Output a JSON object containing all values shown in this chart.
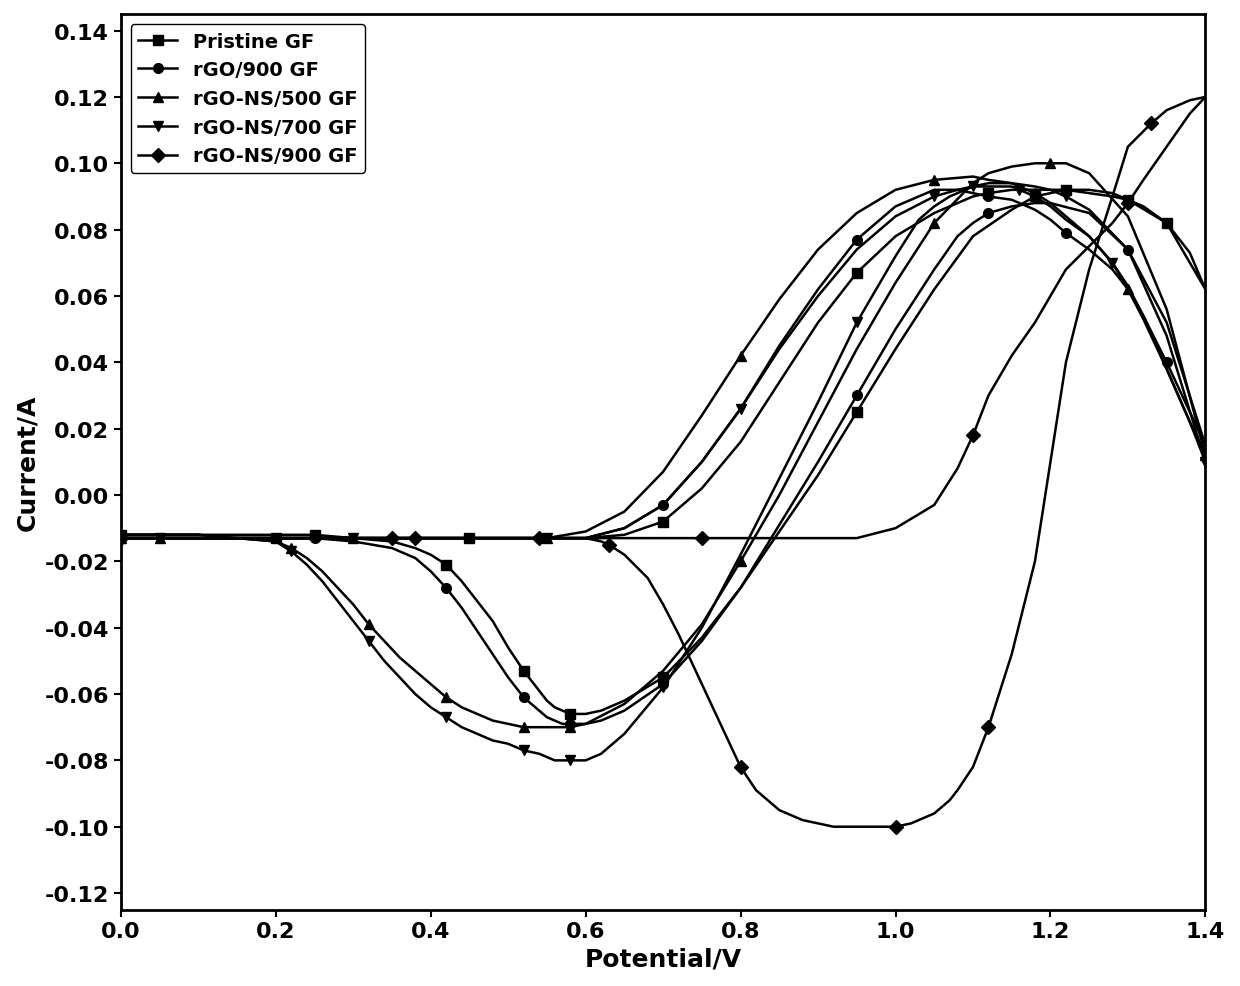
{
  "title": "",
  "xlabel": "Potential/V",
  "ylabel": "Current/A",
  "xlim": [
    0.0,
    1.4
  ],
  "ylim": [
    -0.125,
    0.145
  ],
  "xticks": [
    0.0,
    0.2,
    0.4,
    0.6,
    0.8,
    1.0,
    1.2,
    1.4
  ],
  "yticks": [
    -0.12,
    -0.1,
    -0.08,
    -0.06,
    -0.04,
    -0.02,
    0.0,
    0.02,
    0.04,
    0.06,
    0.08,
    0.1,
    0.12,
    0.14
  ],
  "series": [
    {
      "label": "Pristine GF",
      "marker": "s",
      "linewidth": 1.8,
      "markersize": 7,
      "markevery": 5,
      "x": [
        0.0,
        0.05,
        0.1,
        0.15,
        0.2,
        0.25,
        0.3,
        0.35,
        0.38,
        0.4,
        0.42,
        0.44,
        0.46,
        0.48,
        0.5,
        0.52,
        0.54,
        0.55,
        0.56,
        0.57,
        0.58,
        0.59,
        0.6,
        0.62,
        0.65,
        0.7,
        0.75,
        0.8,
        0.85,
        0.9,
        0.95,
        1.0,
        1.05,
        1.1,
        1.15,
        1.18,
        1.2,
        1.22,
        1.25,
        1.28,
        1.3,
        1.35,
        1.4,
        1.4,
        1.38,
        1.35,
        1.32,
        1.3,
        1.28,
        1.25,
        1.22,
        1.2,
        1.18,
        1.16,
        1.15,
        1.12,
        1.1,
        1.08,
        1.05,
        1.0,
        0.95,
        0.9,
        0.85,
        0.8,
        0.75,
        0.7,
        0.65,
        0.6,
        0.55,
        0.5,
        0.45,
        0.4,
        0.35,
        0.3,
        0.25,
        0.2,
        0.15,
        0.1,
        0.05,
        0.0
      ],
      "y": [
        -0.012,
        -0.012,
        -0.012,
        -0.012,
        -0.012,
        -0.012,
        -0.013,
        -0.014,
        -0.016,
        -0.018,
        -0.021,
        -0.026,
        -0.032,
        -0.038,
        -0.046,
        -0.053,
        -0.059,
        -0.062,
        -0.064,
        -0.065,
        -0.066,
        -0.066,
        -0.066,
        -0.065,
        -0.062,
        -0.055,
        -0.043,
        -0.028,
        -0.011,
        0.006,
        0.025,
        0.044,
        0.062,
        0.078,
        0.086,
        0.09,
        0.091,
        0.092,
        0.092,
        0.091,
        0.089,
        0.082,
        0.062,
        0.062,
        0.073,
        0.082,
        0.087,
        0.089,
        0.09,
        0.091,
        0.092,
        0.092,
        0.092,
        0.092,
        0.092,
        0.091,
        0.09,
        0.088,
        0.085,
        0.078,
        0.067,
        0.052,
        0.034,
        0.016,
        0.002,
        -0.008,
        -0.012,
        -0.013,
        -0.013,
        -0.013,
        -0.013,
        -0.013,
        -0.013,
        -0.013,
        -0.013,
        -0.013,
        -0.013,
        -0.012,
        -0.012,
        -0.012
      ]
    },
    {
      "label": "rGO/900 GF",
      "marker": "o",
      "linewidth": 1.8,
      "markersize": 7,
      "markevery": 5,
      "x": [
        0.0,
        0.05,
        0.1,
        0.15,
        0.2,
        0.25,
        0.3,
        0.35,
        0.38,
        0.4,
        0.42,
        0.44,
        0.46,
        0.48,
        0.5,
        0.52,
        0.54,
        0.55,
        0.56,
        0.57,
        0.58,
        0.59,
        0.6,
        0.62,
        0.65,
        0.7,
        0.75,
        0.8,
        0.85,
        0.9,
        0.95,
        1.0,
        1.05,
        1.08,
        1.1,
        1.12,
        1.15,
        1.18,
        1.2,
        1.25,
        1.3,
        1.35,
        1.4,
        1.4,
        1.38,
        1.35,
        1.32,
        1.3,
        1.28,
        1.25,
        1.22,
        1.2,
        1.18,
        1.16,
        1.15,
        1.12,
        1.1,
        1.08,
        1.05,
        1.0,
        0.95,
        0.9,
        0.85,
        0.8,
        0.75,
        0.7,
        0.65,
        0.6,
        0.55,
        0.5,
        0.45,
        0.4,
        0.35,
        0.3,
        0.25,
        0.2,
        0.15,
        0.1,
        0.05,
        0.0
      ],
      "y": [
        -0.013,
        -0.013,
        -0.013,
        -0.013,
        -0.013,
        -0.013,
        -0.014,
        -0.016,
        -0.019,
        -0.023,
        -0.028,
        -0.034,
        -0.041,
        -0.048,
        -0.055,
        -0.061,
        -0.065,
        -0.067,
        -0.068,
        -0.069,
        -0.069,
        -0.069,
        -0.069,
        -0.068,
        -0.065,
        -0.057,
        -0.044,
        -0.028,
        -0.009,
        0.01,
        0.03,
        0.05,
        0.068,
        0.078,
        0.082,
        0.085,
        0.087,
        0.088,
        0.088,
        0.085,
        0.074,
        0.052,
        0.015,
        0.015,
        0.025,
        0.04,
        0.054,
        0.062,
        0.068,
        0.074,
        0.079,
        0.083,
        0.086,
        0.088,
        0.089,
        0.09,
        0.091,
        0.092,
        0.092,
        0.087,
        0.077,
        0.062,
        0.045,
        0.026,
        0.01,
        -0.003,
        -0.01,
        -0.013,
        -0.013,
        -0.013,
        -0.013,
        -0.013,
        -0.013,
        -0.013,
        -0.013,
        -0.013,
        -0.013,
        -0.013,
        -0.013,
        -0.013
      ]
    },
    {
      "label": "rGO-NS/500 GF",
      "marker": "^",
      "linewidth": 1.8,
      "markersize": 7,
      "markevery": 5,
      "x": [
        0.0,
        0.05,
        0.1,
        0.15,
        0.2,
        0.22,
        0.24,
        0.26,
        0.28,
        0.3,
        0.32,
        0.34,
        0.36,
        0.38,
        0.4,
        0.42,
        0.44,
        0.46,
        0.48,
        0.5,
        0.52,
        0.54,
        0.55,
        0.56,
        0.57,
        0.58,
        0.6,
        0.65,
        0.7,
        0.75,
        0.8,
        0.85,
        0.9,
        0.95,
        1.0,
        1.05,
        1.1,
        1.12,
        1.15,
        1.18,
        1.2,
        1.22,
        1.25,
        1.3,
        1.35,
        1.4,
        1.4,
        1.38,
        1.35,
        1.32,
        1.3,
        1.28,
        1.25,
        1.22,
        1.2,
        1.18,
        1.16,
        1.15,
        1.12,
        1.1,
        1.05,
        1.0,
        0.95,
        0.9,
        0.85,
        0.8,
        0.75,
        0.7,
        0.65,
        0.6,
        0.55,
        0.5,
        0.45,
        0.4,
        0.35,
        0.3,
        0.25,
        0.2,
        0.15,
        0.1,
        0.05,
        0.0
      ],
      "y": [
        -0.013,
        -0.013,
        -0.013,
        -0.013,
        -0.014,
        -0.016,
        -0.019,
        -0.023,
        -0.028,
        -0.033,
        -0.039,
        -0.044,
        -0.049,
        -0.053,
        -0.057,
        -0.061,
        -0.064,
        -0.066,
        -0.068,
        -0.069,
        -0.07,
        -0.07,
        -0.07,
        -0.07,
        -0.07,
        -0.07,
        -0.069,
        -0.063,
        -0.053,
        -0.039,
        -0.02,
        0.0,
        0.022,
        0.044,
        0.064,
        0.082,
        0.094,
        0.097,
        0.099,
        0.1,
        0.1,
        0.1,
        0.097,
        0.084,
        0.056,
        0.012,
        0.012,
        0.022,
        0.038,
        0.053,
        0.062,
        0.07,
        0.078,
        0.084,
        0.088,
        0.091,
        0.093,
        0.094,
        0.095,
        0.096,
        0.095,
        0.092,
        0.085,
        0.074,
        0.059,
        0.042,
        0.024,
        0.007,
        -0.005,
        -0.011,
        -0.013,
        -0.013,
        -0.013,
        -0.013,
        -0.013,
        -0.013,
        -0.013,
        -0.013,
        -0.013,
        -0.013,
        -0.013,
        -0.013
      ]
    },
    {
      "label": "rGO-NS/700 GF",
      "marker": "v",
      "linewidth": 1.8,
      "markersize": 7,
      "markevery": 5,
      "x": [
        0.0,
        0.05,
        0.1,
        0.15,
        0.2,
        0.22,
        0.24,
        0.26,
        0.28,
        0.3,
        0.32,
        0.34,
        0.36,
        0.38,
        0.4,
        0.42,
        0.44,
        0.46,
        0.48,
        0.5,
        0.52,
        0.54,
        0.55,
        0.56,
        0.57,
        0.58,
        0.59,
        0.6,
        0.62,
        0.65,
        0.7,
        0.75,
        0.8,
        0.85,
        0.9,
        0.95,
        1.0,
        1.03,
        1.05,
        1.07,
        1.1,
        1.12,
        1.15,
        1.18,
        1.2,
        1.22,
        1.25,
        1.3,
        1.35,
        1.4,
        1.4,
        1.38,
        1.35,
        1.32,
        1.3,
        1.28,
        1.25,
        1.22,
        1.2,
        1.18,
        1.16,
        1.15,
        1.12,
        1.1,
        1.08,
        1.05,
        1.0,
        0.95,
        0.9,
        0.85,
        0.8,
        0.75,
        0.7,
        0.65,
        0.6,
        0.55,
        0.5,
        0.45,
        0.4,
        0.35,
        0.3,
        0.25,
        0.2,
        0.15,
        0.1,
        0.05,
        0.0
      ],
      "y": [
        -0.013,
        -0.013,
        -0.013,
        -0.013,
        -0.014,
        -0.017,
        -0.021,
        -0.026,
        -0.032,
        -0.038,
        -0.044,
        -0.05,
        -0.055,
        -0.06,
        -0.064,
        -0.067,
        -0.07,
        -0.072,
        -0.074,
        -0.075,
        -0.077,
        -0.078,
        -0.079,
        -0.08,
        -0.08,
        -0.08,
        -0.08,
        -0.08,
        -0.078,
        -0.072,
        -0.058,
        -0.04,
        -0.018,
        0.005,
        0.028,
        0.052,
        0.072,
        0.083,
        0.087,
        0.09,
        0.093,
        0.094,
        0.094,
        0.093,
        0.092,
        0.09,
        0.086,
        0.074,
        0.048,
        0.01,
        0.01,
        0.022,
        0.038,
        0.054,
        0.063,
        0.07,
        0.078,
        0.083,
        0.087,
        0.09,
        0.092,
        0.093,
        0.093,
        0.093,
        0.092,
        0.09,
        0.084,
        0.074,
        0.06,
        0.044,
        0.026,
        0.01,
        -0.003,
        -0.01,
        -0.013,
        -0.013,
        -0.013,
        -0.013,
        -0.013,
        -0.013,
        -0.013,
        -0.013,
        -0.013,
        -0.013,
        -0.013,
        -0.013,
        -0.013
      ]
    },
    {
      "label": "rGO-NS/900 GF",
      "marker": "D",
      "linewidth": 1.8,
      "markersize": 7,
      "markevery": 8,
      "x": [
        0.0,
        0.05,
        0.1,
        0.15,
        0.2,
        0.25,
        0.3,
        0.35,
        0.38,
        0.4,
        0.42,
        0.44,
        0.46,
        0.48,
        0.5,
        0.52,
        0.54,
        0.55,
        0.56,
        0.57,
        0.58,
        0.59,
        0.6,
        0.62,
        0.63,
        0.65,
        0.68,
        0.7,
        0.72,
        0.74,
        0.76,
        0.78,
        0.8,
        0.82,
        0.85,
        0.88,
        0.9,
        0.92,
        0.95,
        0.98,
        1.0,
        1.02,
        1.04,
        1.05,
        1.06,
        1.07,
        1.08,
        1.1,
        1.12,
        1.15,
        1.18,
        1.2,
        1.22,
        1.25,
        1.28,
        1.3,
        1.33,
        1.35,
        1.38,
        1.4,
        1.4,
        1.38,
        1.35,
        1.32,
        1.3,
        1.28,
        1.25,
        1.22,
        1.2,
        1.18,
        1.15,
        1.12,
        1.1,
        1.08,
        1.05,
        1.0,
        0.95,
        0.9,
        0.85,
        0.8,
        0.75,
        0.7,
        0.65,
        0.6,
        0.55,
        0.5,
        0.45,
        0.4,
        0.35,
        0.3,
        0.25,
        0.2,
        0.15,
        0.1,
        0.05,
        0.0
      ],
      "y": [
        -0.013,
        -0.013,
        -0.013,
        -0.013,
        -0.013,
        -0.013,
        -0.013,
        -0.013,
        -0.013,
        -0.013,
        -0.013,
        -0.013,
        -0.013,
        -0.013,
        -0.013,
        -0.013,
        -0.013,
        -0.013,
        -0.013,
        -0.013,
        -0.013,
        -0.013,
        -0.013,
        -0.014,
        -0.015,
        -0.018,
        -0.025,
        -0.033,
        -0.042,
        -0.052,
        -0.062,
        -0.072,
        -0.082,
        -0.089,
        -0.095,
        -0.098,
        -0.099,
        -0.1,
        -0.1,
        -0.1,
        -0.1,
        -0.099,
        -0.097,
        -0.096,
        -0.094,
        -0.092,
        -0.089,
        -0.082,
        -0.07,
        -0.048,
        -0.02,
        0.01,
        0.04,
        0.068,
        0.09,
        0.105,
        0.112,
        0.116,
        0.119,
        0.12,
        0.12,
        0.115,
        0.105,
        0.095,
        0.088,
        0.082,
        0.075,
        0.068,
        0.06,
        0.052,
        0.042,
        0.03,
        0.018,
        0.008,
        -0.003,
        -0.01,
        -0.013,
        -0.013,
        -0.013,
        -0.013,
        -0.013,
        -0.013,
        -0.013,
        -0.013,
        -0.013,
        -0.013,
        -0.013,
        -0.013,
        -0.013,
        -0.013,
        -0.013,
        -0.013,
        -0.013,
        -0.013,
        -0.013,
        -0.013
      ]
    }
  ],
  "legend_loc": "upper left",
  "fontsize_axis_label": 18,
  "fontsize_tick": 16,
  "fontsize_legend": 14,
  "background_color": "#ffffff"
}
